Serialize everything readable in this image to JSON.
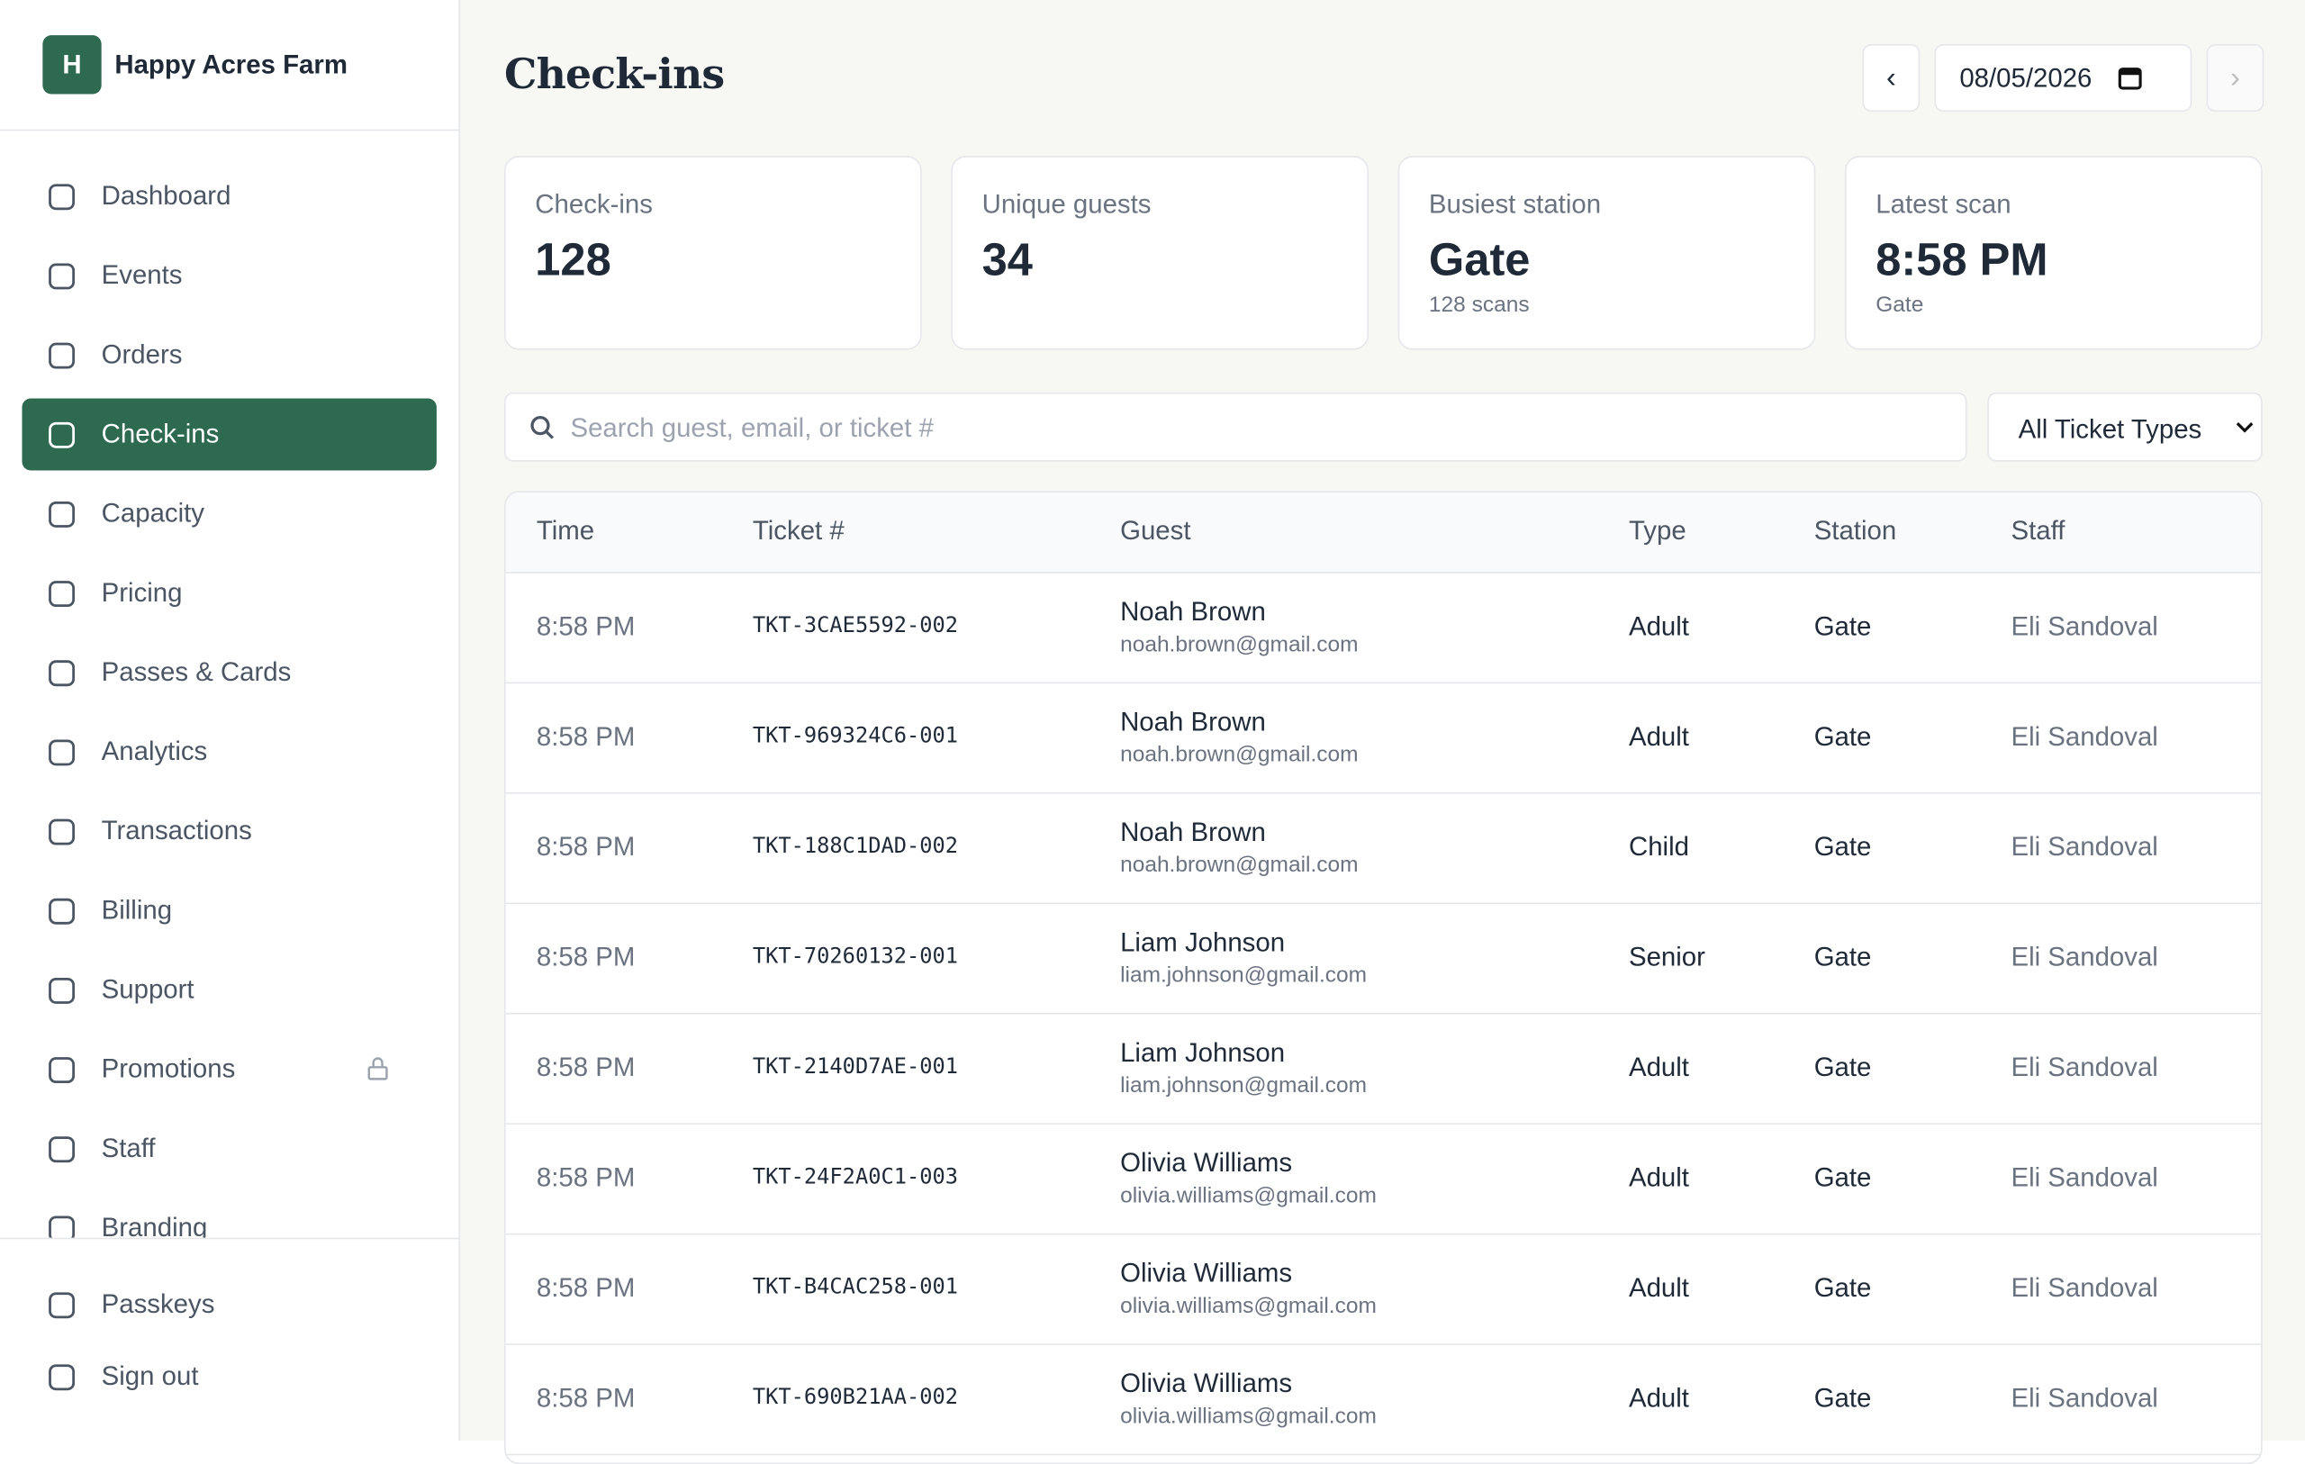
{
  "brand": {
    "initial": "H",
    "name": "Happy Acres Farm"
  },
  "nav": [
    {
      "label": "Dashboard"
    },
    {
      "label": "Events"
    },
    {
      "label": "Orders"
    },
    {
      "label": "Check-ins",
      "active": true
    },
    {
      "label": "Capacity"
    },
    {
      "label": "Pricing"
    },
    {
      "label": "Passes & Cards"
    },
    {
      "label": "Analytics"
    },
    {
      "label": "Transactions"
    },
    {
      "label": "Billing"
    },
    {
      "label": "Support"
    },
    {
      "label": "Promotions",
      "locked": true
    },
    {
      "label": "Staff"
    },
    {
      "label": "Branding"
    }
  ],
  "nav_bottom": [
    {
      "label": "Passkeys"
    },
    {
      "label": "Sign out"
    }
  ],
  "header": {
    "title": "Check-ins",
    "date": "08/05/2026",
    "prev": "‹",
    "next": "›"
  },
  "stats": [
    {
      "label": "Check-ins",
      "value": "128"
    },
    {
      "label": "Unique guests",
      "value": "34"
    },
    {
      "label": "Busiest station",
      "value": "Gate",
      "sub": "128 scans"
    },
    {
      "label": "Latest scan",
      "value": "8:58 PM",
      "sub": "Gate"
    }
  ],
  "search": {
    "placeholder": "Search guest, email, or ticket #"
  },
  "filter": {
    "label": "All Ticket Types"
  },
  "table": {
    "headers": [
      "Time",
      "Ticket #",
      "Guest",
      "Type",
      "Station",
      "Staff"
    ],
    "rows": [
      [
        "8:58 PM",
        "TKT-3CAE5592-002",
        [
          "Noah Brown",
          "noah.brown@gmail.com"
        ],
        "Adult",
        "Gate",
        "Eli Sandoval"
      ],
      [
        "8:58 PM",
        "TKT-969324C6-001",
        [
          "Noah Brown",
          "noah.brown@gmail.com"
        ],
        "Adult",
        "Gate",
        "Eli Sandoval"
      ],
      [
        "8:58 PM",
        "TKT-188C1DAD-002",
        [
          "Noah Brown",
          "noah.brown@gmail.com"
        ],
        "Child",
        "Gate",
        "Eli Sandoval"
      ],
      [
        "8:58 PM",
        "TKT-70260132-001",
        [
          "Liam Johnson",
          "liam.johnson@gmail.com"
        ],
        "Senior",
        "Gate",
        "Eli Sandoval"
      ],
      [
        "8:58 PM",
        "TKT-2140D7AE-001",
        [
          "Liam Johnson",
          "liam.johnson@gmail.com"
        ],
        "Adult",
        "Gate",
        "Eli Sandoval"
      ],
      [
        "8:58 PM",
        "TKT-24F2A0C1-003",
        [
          "Olivia Williams",
          "olivia.williams@gmail.com"
        ],
        "Adult",
        "Gate",
        "Eli Sandoval"
      ],
      [
        "8:58 PM",
        "TKT-B4CAC258-001",
        [
          "Olivia Williams",
          "olivia.williams@gmail.com"
        ],
        "Adult",
        "Gate",
        "Eli Sandoval"
      ],
      [
        "8:58 PM",
        "TKT-690B21AA-002",
        [
          "Olivia Williams",
          "olivia.williams@gmail.com"
        ],
        "Adult",
        "Gate",
        "Eli Sandoval"
      ]
    ]
  }
}
